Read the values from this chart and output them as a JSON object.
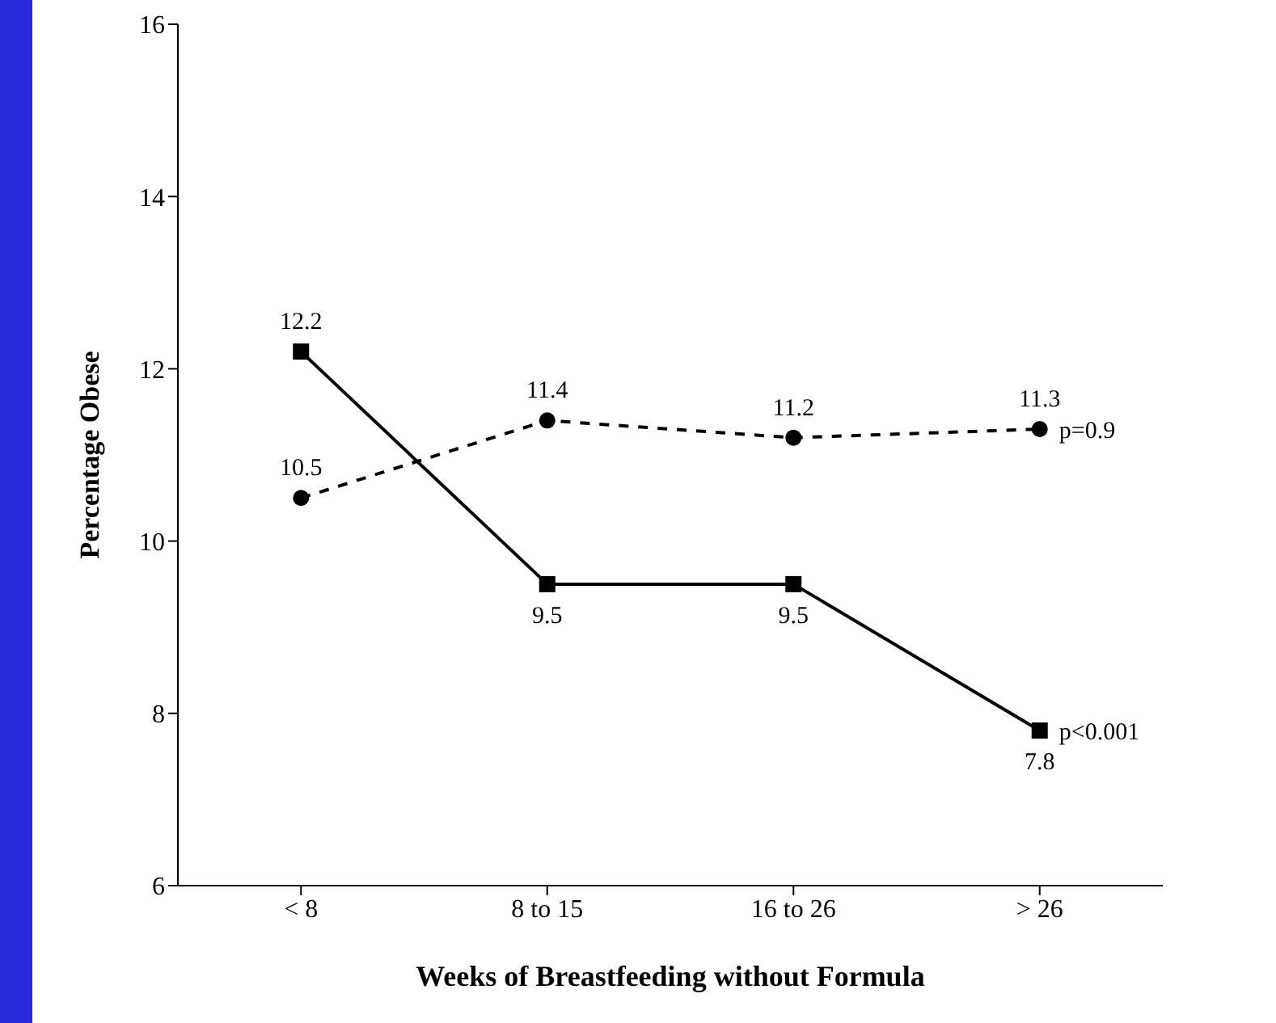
{
  "chart_data": {
    "type": "line",
    "xlabel": "Weeks of Breastfeeding without Formula",
    "ylabel": "Percentage Obese",
    "categories": [
      "< 8",
      "8 to 15",
      "16 to 26",
      "> 26"
    ],
    "series": [
      {
        "color": "#000000",
        "values": [
          12.2,
          9.5,
          9.5,
          7.8
        ],
        "marker": "square",
        "line_style": "solid"
      },
      {
        "color": "#000000",
        "values": [
          10.5,
          11.4,
          11.2,
          11.3
        ],
        "marker": "circle",
        "line_style": "dashed"
      }
    ],
    "ylim": [
      6,
      16
    ],
    "yticks": [
      6,
      8,
      10,
      12,
      14,
      16
    ],
    "grid": false,
    "data_labels": true,
    "annotations": [
      {
        "text": "p<0.001",
        "x": "> 26",
        "y": 7.8
      },
      {
        "text": "p=0.9",
        "x": "> 26",
        "y": 11.3
      }
    ]
  }
}
